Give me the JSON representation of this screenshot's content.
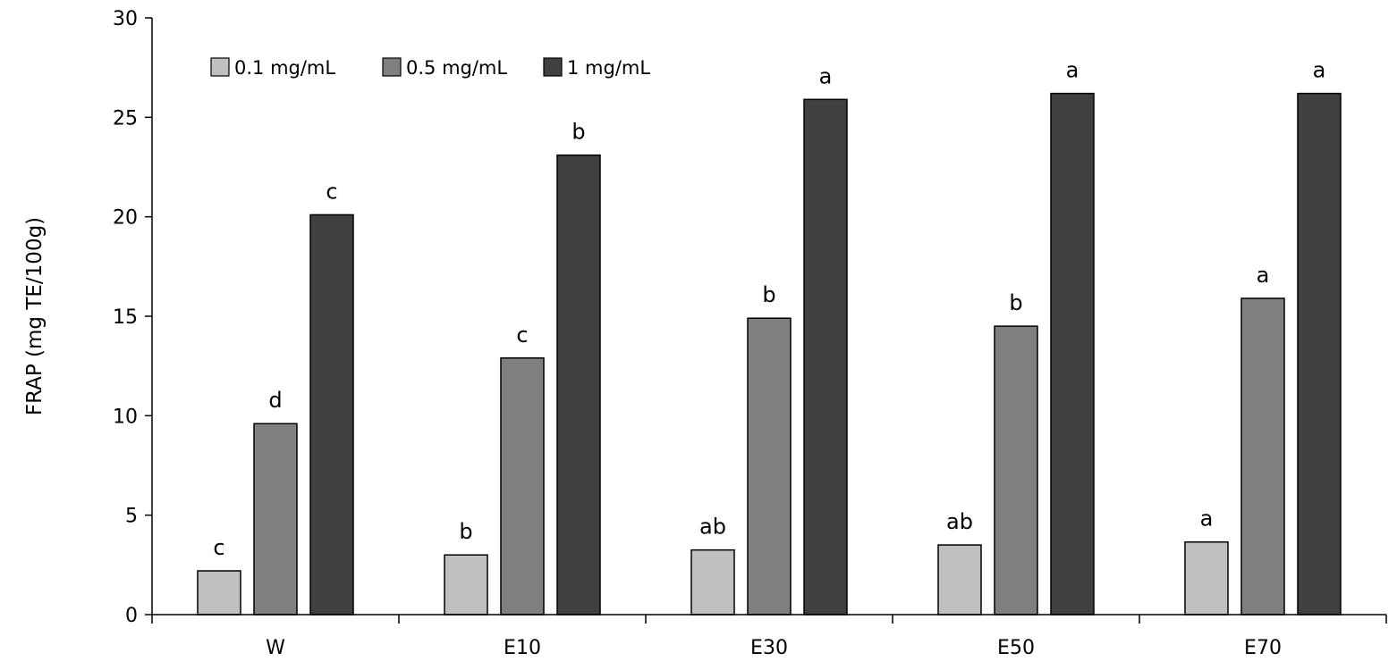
{
  "chart_data": {
    "type": "bar",
    "ylabel": "FRAP (mg TE/100g)",
    "xlabel": "",
    "ylim": [
      0,
      30
    ],
    "yticks": [
      "0",
      "5",
      "10",
      "15",
      "20",
      "25",
      "30"
    ],
    "grid": false,
    "legend_position": "top-left",
    "categories": [
      "W",
      "E10",
      "E30",
      "E50",
      "E70"
    ],
    "series": [
      {
        "name": "0.1 mg/mL",
        "color": "#c0c0c0",
        "values": [
          2.2,
          3.0,
          3.25,
          3.5,
          3.65
        ],
        "labels": [
          "c",
          "b",
          "ab",
          "ab",
          "a"
        ]
      },
      {
        "name": "0.5 mg/mL",
        "color": "#808080",
        "values": [
          9.6,
          12.9,
          14.9,
          14.5,
          15.9
        ],
        "labels": [
          "d",
          "c",
          "b",
          "b",
          "a"
        ]
      },
      {
        "name": "1 mg/mL",
        "color": "#404040",
        "values": [
          20.1,
          23.1,
          25.9,
          26.2,
          26.2
        ],
        "labels": [
          "c",
          "b",
          "a",
          "a",
          "a"
        ]
      }
    ]
  }
}
